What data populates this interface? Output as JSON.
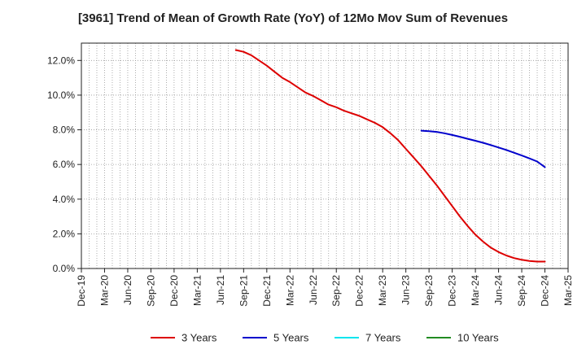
{
  "chart_data": {
    "type": "line",
    "title": "[3961]  Trend of Mean of Growth Rate (YoY) of 12Mo Mov Sum of Revenues",
    "xlabel": "",
    "ylabel": "",
    "x_ticks": [
      "Dec-19",
      "Mar-20",
      "Jun-20",
      "Sep-20",
      "Dec-20",
      "Mar-21",
      "Jun-21",
      "Sep-21",
      "Dec-21",
      "Mar-22",
      "Jun-22",
      "Sep-22",
      "Dec-22",
      "Mar-23",
      "Jun-23",
      "Sep-23",
      "Dec-23",
      "Mar-24",
      "Jun-24",
      "Sep-24",
      "Dec-24",
      "Mar-25"
    ],
    "y_ticks": [
      "0.0%",
      "2.0%",
      "4.0%",
      "6.0%",
      "8.0%",
      "10.0%",
      "12.0%"
    ],
    "ylim": [
      0,
      13.0
    ],
    "grid": true,
    "legend_position": "bottom",
    "series": [
      {
        "name": "3 Years",
        "color": "#dd0000",
        "points": [
          {
            "x": "Aug-21",
            "y": 12.6
          },
          {
            "x": "Sep-21",
            "y": 12.5
          },
          {
            "x": "Oct-21",
            "y": 12.3
          },
          {
            "x": "Nov-21",
            "y": 12.0
          },
          {
            "x": "Dec-21",
            "y": 11.7
          },
          {
            "x": "Jan-22",
            "y": 11.35
          },
          {
            "x": "Feb-22",
            "y": 11.0
          },
          {
            "x": "Mar-22",
            "y": 10.75
          },
          {
            "x": "Apr-22",
            "y": 10.45
          },
          {
            "x": "May-22",
            "y": 10.15
          },
          {
            "x": "Jun-22",
            "y": 9.95
          },
          {
            "x": "Jul-22",
            "y": 9.7
          },
          {
            "x": "Aug-22",
            "y": 9.45
          },
          {
            "x": "Sep-22",
            "y": 9.3
          },
          {
            "x": "Oct-22",
            "y": 9.1
          },
          {
            "x": "Nov-22",
            "y": 8.95
          },
          {
            "x": "Dec-22",
            "y": 8.8
          },
          {
            "x": "Jan-23",
            "y": 8.6
          },
          {
            "x": "Feb-23",
            "y": 8.4
          },
          {
            "x": "Mar-23",
            "y": 8.15
          },
          {
            "x": "Apr-23",
            "y": 7.8
          },
          {
            "x": "May-23",
            "y": 7.4
          },
          {
            "x": "Jun-23",
            "y": 6.9
          },
          {
            "x": "Jul-23",
            "y": 6.4
          },
          {
            "x": "Aug-23",
            "y": 5.9
          },
          {
            "x": "Sep-23",
            "y": 5.35
          },
          {
            "x": "Oct-23",
            "y": 4.8
          },
          {
            "x": "Nov-23",
            "y": 4.2
          },
          {
            "x": "Dec-23",
            "y": 3.6
          },
          {
            "x": "Jan-24",
            "y": 3.0
          },
          {
            "x": "Feb-24",
            "y": 2.45
          },
          {
            "x": "Mar-24",
            "y": 1.95
          },
          {
            "x": "Apr-24",
            "y": 1.55
          },
          {
            "x": "May-24",
            "y": 1.2
          },
          {
            "x": "Jun-24",
            "y": 0.95
          },
          {
            "x": "Jul-24",
            "y": 0.75
          },
          {
            "x": "Aug-24",
            "y": 0.6
          },
          {
            "x": "Sep-24",
            "y": 0.5
          },
          {
            "x": "Oct-24",
            "y": 0.43
          },
          {
            "x": "Nov-24",
            "y": 0.4
          },
          {
            "x": "Dec-24",
            "y": 0.4
          }
        ]
      },
      {
        "name": "5 Years",
        "color": "#0000cc",
        "points": [
          {
            "x": "Aug-23",
            "y": 7.95
          },
          {
            "x": "Sep-23",
            "y": 7.92
          },
          {
            "x": "Oct-23",
            "y": 7.88
          },
          {
            "x": "Nov-23",
            "y": 7.8
          },
          {
            "x": "Dec-23",
            "y": 7.7
          },
          {
            "x": "Jan-24",
            "y": 7.6
          },
          {
            "x": "Feb-24",
            "y": 7.48
          },
          {
            "x": "Mar-24",
            "y": 7.37
          },
          {
            "x": "Apr-24",
            "y": 7.25
          },
          {
            "x": "May-24",
            "y": 7.12
          },
          {
            "x": "Jun-24",
            "y": 6.98
          },
          {
            "x": "Jul-24",
            "y": 6.84
          },
          {
            "x": "Aug-24",
            "y": 6.68
          },
          {
            "x": "Sep-24",
            "y": 6.52
          },
          {
            "x": "Oct-24",
            "y": 6.35
          },
          {
            "x": "Nov-24",
            "y": 6.17
          },
          {
            "x": "Dec-24",
            "y": 5.85
          }
        ]
      },
      {
        "name": "7 Years",
        "color": "#00e5ee",
        "points": []
      },
      {
        "name": "10 Years",
        "color": "#228b22",
        "points": []
      }
    ]
  }
}
